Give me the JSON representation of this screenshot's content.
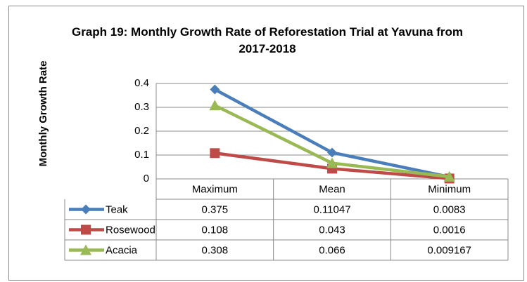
{
  "chart_data": {
    "type": "line",
    "title": "Graph 19: Monthly Growth Rate of Reforestation Trial at Yavuna from 2017-2018",
    "y_label": "Monthly Growth Rate",
    "categories": [
      "Maximum",
      "Mean",
      "Minimum"
    ],
    "series": [
      {
        "name": "Teak",
        "color": "#4a7ebb",
        "marker": "diamond",
        "values": [
          0.375,
          0.11047,
          0.0083
        ]
      },
      {
        "name": "Rosewood",
        "color": "#be4b48",
        "marker": "square",
        "values": [
          0.108,
          0.043,
          0.0016
        ]
      },
      {
        "name": "Acacia",
        "color": "#98b954",
        "marker": "triangle",
        "values": [
          0.308,
          0.066,
          0.009167
        ]
      }
    ],
    "ylim": [
      0,
      0.4
    ],
    "yticks": [
      0,
      0.1,
      0.2,
      0.3,
      0.4
    ],
    "grid": true,
    "data_table": true
  }
}
